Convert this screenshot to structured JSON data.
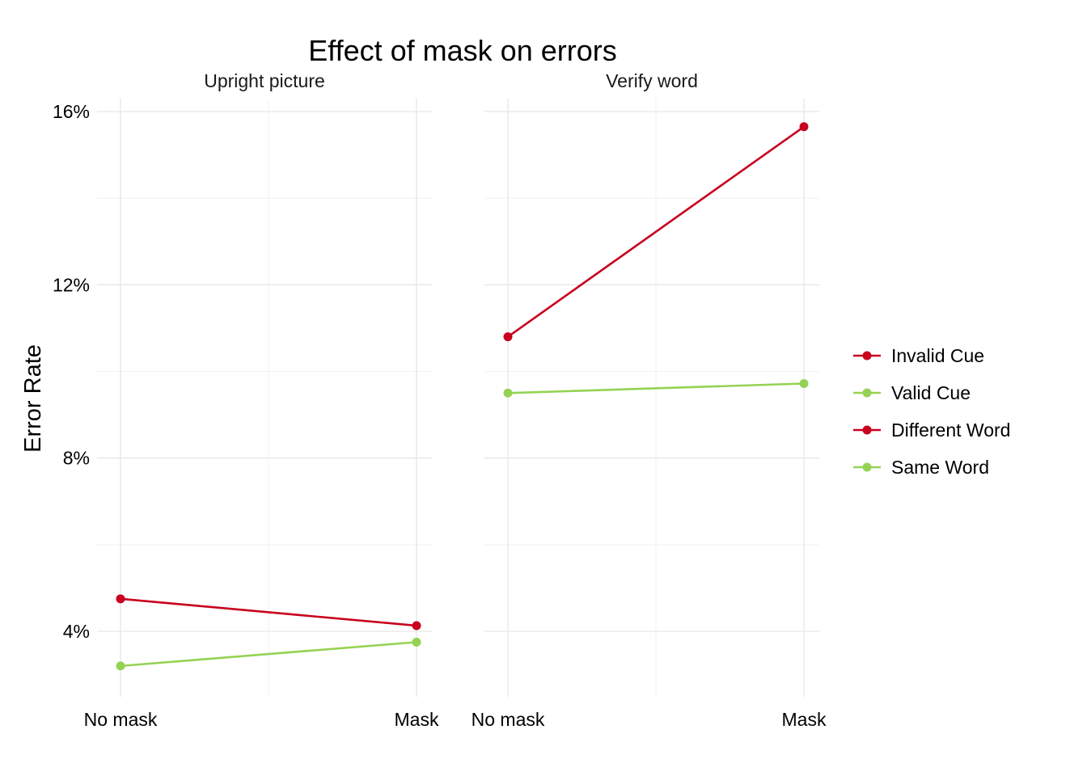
{
  "chart_data": {
    "type": "line",
    "title": "Effect of mask on errors",
    "ylabel": "Error Rate",
    "xlabel": "",
    "categories": [
      "No mask",
      "Mask"
    ],
    "ylim": [
      2.6,
      16.3
    ],
    "yticks": [
      4,
      8,
      12,
      16
    ],
    "ytick_labels": [
      "4%",
      "8%",
      "12%",
      "16%"
    ],
    "grid": true,
    "legend_position": "right",
    "legend": [
      {
        "label": "Invalid Cue",
        "color": "#c8001e"
      },
      {
        "label": "Valid Cue",
        "color": "#95d253"
      },
      {
        "label": "Different Word",
        "color": "#c8001e"
      },
      {
        "label": "Same Word",
        "color": "#95d253"
      }
    ],
    "panels": [
      {
        "name": "Upright picture",
        "series": [
          {
            "name": "Invalid Cue",
            "color": "#c8001e",
            "values": [
              4.75,
              4.13
            ]
          },
          {
            "name": "Valid Cue",
            "color": "#95d253",
            "values": [
              3.2,
              3.75
            ]
          }
        ]
      },
      {
        "name": "Verify word",
        "series": [
          {
            "name": "Different Word",
            "color": "#c8001e",
            "values": [
              10.8,
              15.65
            ]
          },
          {
            "name": "Same Word",
            "color": "#95d253",
            "values": [
              9.5,
              9.72
            ]
          }
        ]
      }
    ]
  }
}
